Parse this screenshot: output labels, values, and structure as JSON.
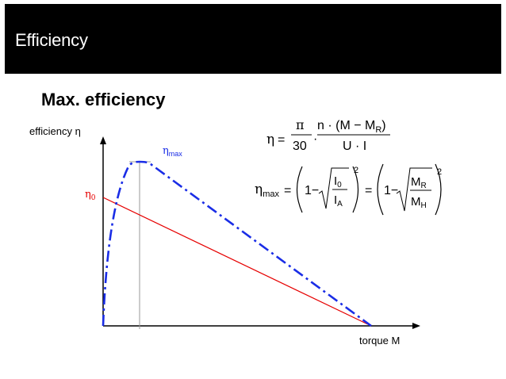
{
  "slide": {
    "title": "Efficiency",
    "subtitle": "Max. efficiency"
  },
  "diagram": {
    "y_axis_label": "efficiency η",
    "x_axis_label": "torque M",
    "eta0_label": "η",
    "eta0_sub": "0",
    "etamax_label": "η",
    "etamax_sub": "max"
  },
  "formula1": {
    "eta": "η",
    "equals": "=",
    "pi": "π",
    "thirty": "30",
    "dot": "·",
    "numerator": "n · (M − M",
    "numerator_sub": "R",
    "numerator_end": ")",
    "denominator": "U · I"
  },
  "formula2": {
    "eta": "η",
    "eta_sub": "max",
    "equals1": "=",
    "one1": "1−",
    "i0": "I",
    "i0_sub": "0",
    "ia": "I",
    "ia_sub": "A",
    "exp1": "2",
    "equals2": "=",
    "one2": "1−",
    "mr": "M",
    "mr_sub": "R",
    "mh": "M",
    "mh_sub": "H",
    "exp2": "2"
  },
  "colors": {
    "title_bar": "#000000",
    "efficiency_curve": "#1a2de6",
    "eta0_line": "#e60000",
    "axis": "#000000",
    "guide_line": "#9a9a9a"
  }
}
